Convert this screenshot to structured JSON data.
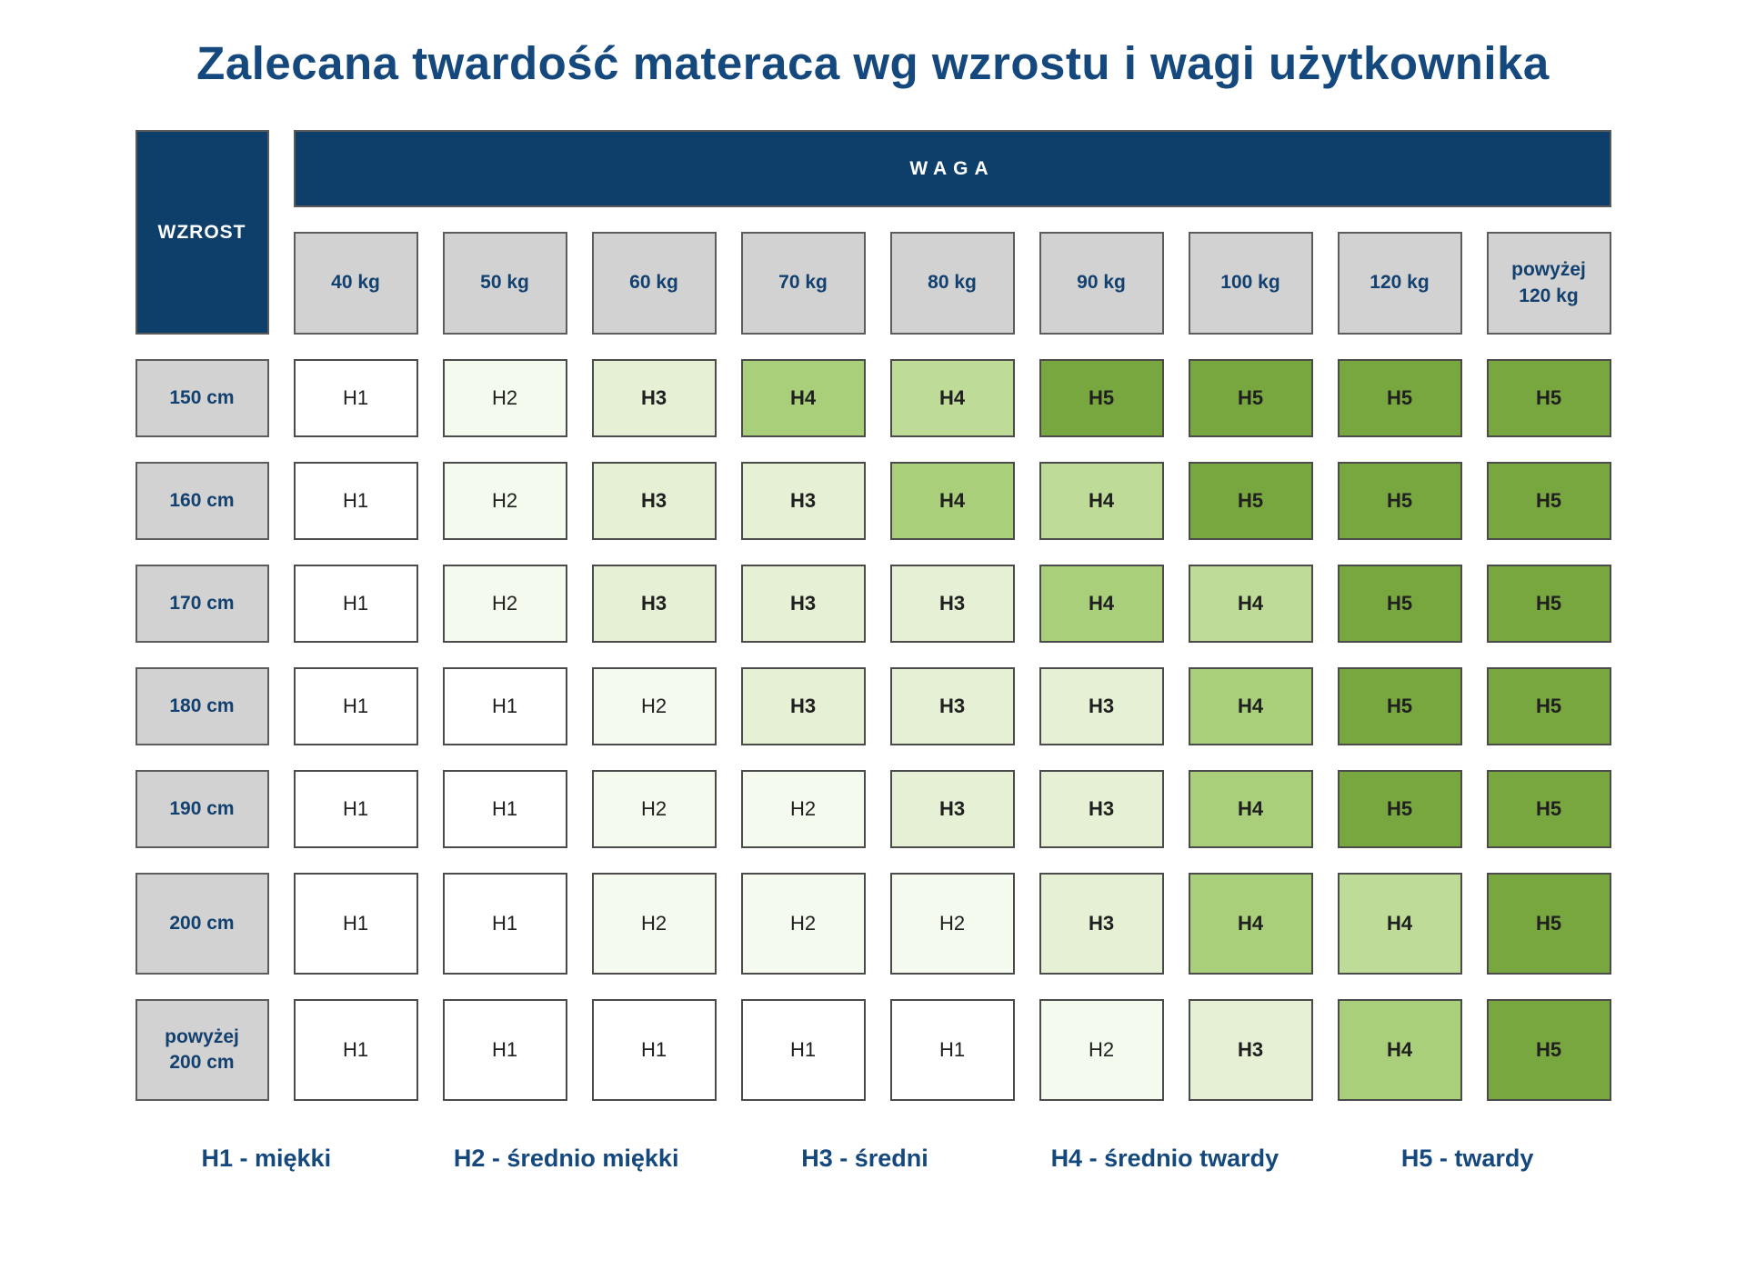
{
  "title": "Zalecana twardość materaca wg wzrostu i wagi użytkownika",
  "table": {
    "corner_label": "WZROST",
    "weight_label": "WAGA",
    "columns": [
      "40 kg",
      "50 kg",
      "60 kg",
      "70 kg",
      "80 kg",
      "90 kg",
      "100 kg",
      "120 kg",
      "powyżej\n120 kg"
    ],
    "rows": [
      {
        "label": "150 cm",
        "cells": [
          {
            "v": "H1",
            "t": "h1"
          },
          {
            "v": "H2",
            "t": "h2"
          },
          {
            "v": "H3",
            "t": "h3"
          },
          {
            "v": "H4",
            "t": "h4"
          },
          {
            "v": "H4",
            "t": "h4b"
          },
          {
            "v": "H5",
            "t": "h5"
          },
          {
            "v": "H5",
            "t": "h5"
          },
          {
            "v": "H5",
            "t": "h5"
          },
          {
            "v": "H5",
            "t": "h5"
          }
        ]
      },
      {
        "label": "160 cm",
        "cells": [
          {
            "v": "H1",
            "t": "h1"
          },
          {
            "v": "H2",
            "t": "h2"
          },
          {
            "v": "H3",
            "t": "h3"
          },
          {
            "v": "H3",
            "t": "h3"
          },
          {
            "v": "H4",
            "t": "h4"
          },
          {
            "v": "H4",
            "t": "h4b"
          },
          {
            "v": "H5",
            "t": "h5"
          },
          {
            "v": "H5",
            "t": "h5"
          },
          {
            "v": "H5",
            "t": "h5"
          }
        ]
      },
      {
        "label": "170 cm",
        "cells": [
          {
            "v": "H1",
            "t": "h1"
          },
          {
            "v": "H2",
            "t": "h2"
          },
          {
            "v": "H3",
            "t": "h3"
          },
          {
            "v": "H3",
            "t": "h3"
          },
          {
            "v": "H3",
            "t": "h3"
          },
          {
            "v": "H4",
            "t": "h4"
          },
          {
            "v": "H4",
            "t": "h4b"
          },
          {
            "v": "H5",
            "t": "h5"
          },
          {
            "v": "H5",
            "t": "h5"
          }
        ]
      },
      {
        "label": "180 cm",
        "cells": [
          {
            "v": "H1",
            "t": "h1"
          },
          {
            "v": "H1",
            "t": "h1"
          },
          {
            "v": "H2",
            "t": "h2"
          },
          {
            "v": "H3",
            "t": "h3"
          },
          {
            "v": "H3",
            "t": "h3"
          },
          {
            "v": "H3",
            "t": "h3"
          },
          {
            "v": "H4",
            "t": "h4"
          },
          {
            "v": "H5",
            "t": "h5"
          },
          {
            "v": "H5",
            "t": "h5"
          }
        ]
      },
      {
        "label": "190 cm",
        "cells": [
          {
            "v": "H1",
            "t": "h1"
          },
          {
            "v": "H1",
            "t": "h1"
          },
          {
            "v": "H2",
            "t": "h2"
          },
          {
            "v": "H2",
            "t": "h2"
          },
          {
            "v": "H3",
            "t": "h3"
          },
          {
            "v": "H3",
            "t": "h3"
          },
          {
            "v": "H4",
            "t": "h4"
          },
          {
            "v": "H5",
            "t": "h5"
          },
          {
            "v": "H5",
            "t": "h5"
          }
        ]
      },
      {
        "label": "200 cm",
        "cells": [
          {
            "v": "H1",
            "t": "h1"
          },
          {
            "v": "H1",
            "t": "h1"
          },
          {
            "v": "H2",
            "t": "h2"
          },
          {
            "v": "H2",
            "t": "h2"
          },
          {
            "v": "H2",
            "t": "h2"
          },
          {
            "v": "H3",
            "t": "h3"
          },
          {
            "v": "H4",
            "t": "h4"
          },
          {
            "v": "H4",
            "t": "h4b"
          },
          {
            "v": "H5",
            "t": "h5"
          }
        ]
      },
      {
        "label": "powyżej\n200 cm",
        "cells": [
          {
            "v": "H1",
            "t": "h1"
          },
          {
            "v": "H1",
            "t": "h1"
          },
          {
            "v": "H1",
            "t": "h1"
          },
          {
            "v": "H1",
            "t": "h1"
          },
          {
            "v": "H1",
            "t": "h1"
          },
          {
            "v": "H2",
            "t": "h2"
          },
          {
            "v": "H3",
            "t": "h3"
          },
          {
            "v": "H4",
            "t": "h4"
          },
          {
            "v": "H5",
            "t": "h5"
          }
        ]
      }
    ]
  },
  "legend": [
    "H1 - miękki",
    "H2 - średnio miękki",
    "H3 - średni",
    "H4 - średnio twardy",
    "H5 - twardy"
  ],
  "palette": {
    "navy": "#0e3f6b",
    "navy_text": "#12406f",
    "title_text": "#15497e",
    "header_gray": "#d2d2d2",
    "header_border": "#5c5c5c",
    "cell_border": "#4b4b4b",
    "cell_text": "#1f1f1f",
    "h1": "#ffffff",
    "h2": "#f5faef",
    "h3": "#e5f0d5",
    "h4": "#a9cf7a",
    "h4b": "#bedb97",
    "h5": "#78a73f"
  },
  "chart_data": {
    "type": "heatmap",
    "title": "Zalecana twardość materaca wg wzrostu i wagi użytkownika",
    "x_label": "WAGA",
    "y_label": "WZROST",
    "x_categories": [
      "40 kg",
      "50 kg",
      "60 kg",
      "70 kg",
      "80 kg",
      "90 kg",
      "100 kg",
      "120 kg",
      "powyżej 120 kg"
    ],
    "y_categories": [
      "150 cm",
      "160 cm",
      "170 cm",
      "180 cm",
      "190 cm",
      "200 cm",
      "powyżej 200 cm"
    ],
    "values": [
      [
        "H1",
        "H2",
        "H3",
        "H4",
        "H4",
        "H5",
        "H5",
        "H5",
        "H5"
      ],
      [
        "H1",
        "H2",
        "H3",
        "H3",
        "H4",
        "H4",
        "H5",
        "H5",
        "H5"
      ],
      [
        "H1",
        "H2",
        "H3",
        "H3",
        "H3",
        "H4",
        "H4",
        "H5",
        "H5"
      ],
      [
        "H1",
        "H1",
        "H2",
        "H3",
        "H3",
        "H3",
        "H4",
        "H5",
        "H5"
      ],
      [
        "H1",
        "H1",
        "H2",
        "H2",
        "H3",
        "H3",
        "H4",
        "H5",
        "H5"
      ],
      [
        "H1",
        "H1",
        "H2",
        "H2",
        "H2",
        "H3",
        "H4",
        "H4",
        "H5"
      ],
      [
        "H1",
        "H1",
        "H1",
        "H1",
        "H1",
        "H2",
        "H3",
        "H4",
        "H5"
      ]
    ],
    "value_scale": [
      "H1 - miękki",
      "H2 - średnio miękki",
      "H3 - średni",
      "H4 - średnio twardy",
      "H5 - twardy"
    ],
    "legend_position": "bottom",
    "grid": false
  }
}
